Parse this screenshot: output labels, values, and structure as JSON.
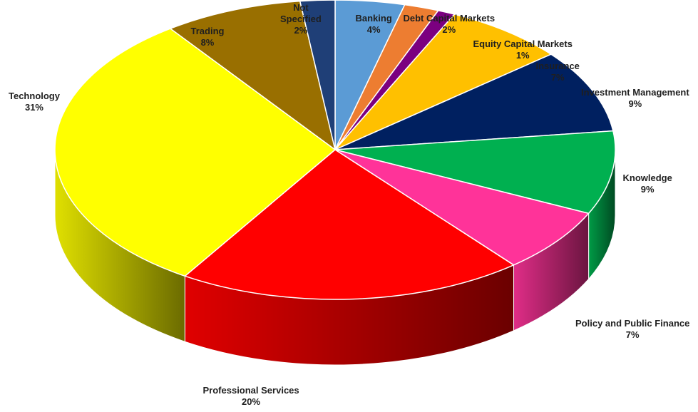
{
  "chart_data": {
    "type": "pie",
    "title": "",
    "three_d": true,
    "legend": "none",
    "slices": [
      {
        "label": "Banking",
        "value": 4,
        "value_label": "4%",
        "color": "#5B9BD5"
      },
      {
        "label": "Debt Capital Markets",
        "value": 2,
        "value_label": "2%",
        "color": "#ED7D31"
      },
      {
        "label": "Equity Capital Markets",
        "value": 1,
        "value_label": "1%",
        "color": "#7B0080"
      },
      {
        "label": "Insurance",
        "value": 7,
        "value_label": "7%",
        "color": "#FFC000"
      },
      {
        "label": "Investment Management",
        "value": 9,
        "value_label": "9%",
        "color": "#002060"
      },
      {
        "label": "Knowledge",
        "value": 9,
        "value_label": "9%",
        "color": "#00B050"
      },
      {
        "label": "Policy and Public Finance",
        "value": 7,
        "value_label": "7%",
        "color": "#FF3399"
      },
      {
        "label": "Professional Services",
        "value": 20,
        "value_label": "20%",
        "color": "#FF0000"
      },
      {
        "label": "Technology",
        "value": 31,
        "value_label": "31%",
        "color": "#FFFF00"
      },
      {
        "label": "Trading",
        "value": 8,
        "value_label": "8%",
        "color": "#996F00"
      },
      {
        "label": "Not Specified",
        "value": 2,
        "value_label": "2%",
        "color": "#1F3F77"
      }
    ]
  }
}
